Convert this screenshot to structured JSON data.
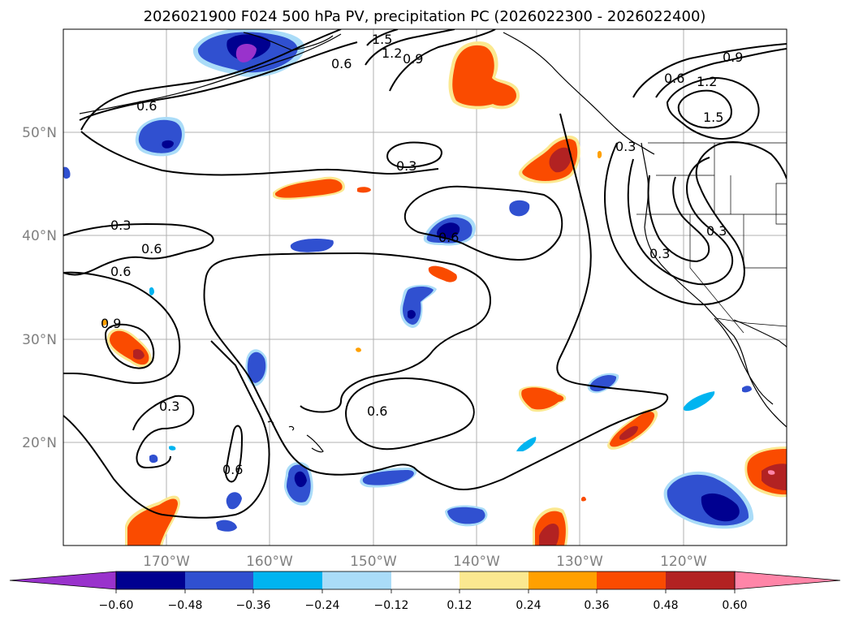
{
  "title": "2026021900 F024 500 hPa PV, precipitation PC (2026022300 - 2026022400)",
  "colors": {
    "neg_060": "#9932cc",
    "neg_048": "#000090",
    "neg_036": "#3050d0",
    "neg_024": "#00b4f0",
    "neg_012": "#aadcf8",
    "zero": "#ffffff",
    "pos_012": "#fbe890",
    "pos_024": "#ffa000",
    "pos_036": "#fa4b00",
    "pos_048": "#b22222",
    "pos_060": "#ff85a8"
  },
  "lat_labels": [
    "50°N",
    "40°N",
    "30°N",
    "20°N"
  ],
  "lon_labels": [
    "170°W",
    "160°W",
    "150°W",
    "140°W",
    "130°W",
    "120°W"
  ],
  "colorbar_ticks": [
    "−0.60",
    "−0.48",
    "−0.36",
    "−0.24",
    "−0.12",
    "0.12",
    "0.24",
    "0.36",
    "0.48",
    "0.60"
  ],
  "contour_labels": [
    "1.5",
    "1.2",
    "0.9",
    "0.6",
    "0.6",
    "0.9",
    "1.2",
    "1.5",
    "0.3",
    "0.3",
    "0.6",
    "0.6",
    "0.3",
    "0.6",
    "0.3",
    "0.9",
    "0.3",
    "0.6",
    "0.6",
    "0.6",
    "0.3"
  ]
}
